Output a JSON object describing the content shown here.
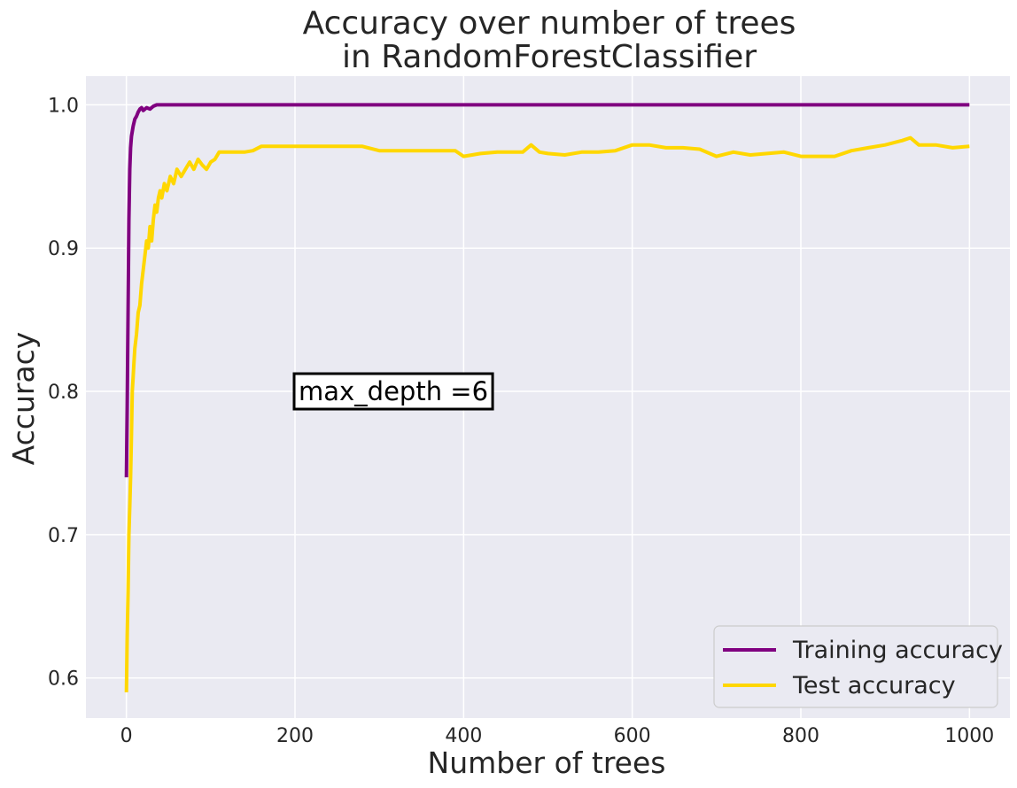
{
  "chart_data": {
    "type": "line",
    "title_lines": [
      "Accuracy over number of trees",
      "in RandomForestClassifier"
    ],
    "xlabel": "Number of trees",
    "ylabel": "Accuracy",
    "xlim": [
      -48,
      1048
    ],
    "ylim": [
      0.572,
      1.02
    ],
    "xticks": [
      0,
      200,
      400,
      600,
      800,
      1000
    ],
    "yticks": [
      0.6,
      0.7,
      0.8,
      0.9,
      1.0
    ],
    "xtick_labels": [
      "0",
      "200",
      "400",
      "600",
      "800",
      "1000"
    ],
    "ytick_labels": [
      "0.6",
      "0.7",
      "0.8",
      "0.9",
      "1.0"
    ],
    "grid": true,
    "legend_position": "bottom-right",
    "annotation": {
      "text": "max_depth =6",
      "x": 200,
      "y": 0.8
    },
    "background": "#eaeaf2",
    "series": [
      {
        "name": "Training accuracy",
        "color": "#800080",
        "points": [
          [
            0,
            0.74
          ],
          [
            1,
            0.79
          ],
          [
            2,
            0.86
          ],
          [
            3,
            0.92
          ],
          [
            4,
            0.955
          ],
          [
            5,
            0.97
          ],
          [
            6,
            0.978
          ],
          [
            8,
            0.985
          ],
          [
            10,
            0.99
          ],
          [
            12,
            0.992
          ],
          [
            14,
            0.995
          ],
          [
            16,
            0.997
          ],
          [
            18,
            0.998
          ],
          [
            20,
            0.996
          ],
          [
            24,
            0.998
          ],
          [
            28,
            0.997
          ],
          [
            32,
            0.999
          ],
          [
            36,
            1.0
          ],
          [
            1000,
            1.0
          ]
        ]
      },
      {
        "name": "Test accuracy",
        "color": "#ffd700",
        "points": [
          [
            0,
            0.59
          ],
          [
            1,
            0.63
          ],
          [
            2,
            0.66
          ],
          [
            3,
            0.7
          ],
          [
            4,
            0.72
          ],
          [
            5,
            0.74
          ],
          [
            6,
            0.77
          ],
          [
            7,
            0.8
          ],
          [
            8,
            0.81
          ],
          [
            9,
            0.82
          ],
          [
            10,
            0.83
          ],
          [
            12,
            0.84
          ],
          [
            14,
            0.855
          ],
          [
            16,
            0.86
          ],
          [
            18,
            0.875
          ],
          [
            20,
            0.885
          ],
          [
            22,
            0.895
          ],
          [
            24,
            0.905
          ],
          [
            26,
            0.9
          ],
          [
            28,
            0.915
          ],
          [
            30,
            0.905
          ],
          [
            32,
            0.92
          ],
          [
            34,
            0.93
          ],
          [
            36,
            0.925
          ],
          [
            38,
            0.935
          ],
          [
            40,
            0.94
          ],
          [
            42,
            0.935
          ],
          [
            45,
            0.945
          ],
          [
            48,
            0.94
          ],
          [
            52,
            0.95
          ],
          [
            56,
            0.945
          ],
          [
            60,
            0.955
          ],
          [
            65,
            0.95
          ],
          [
            70,
            0.955
          ],
          [
            75,
            0.96
          ],
          [
            80,
            0.955
          ],
          [
            85,
            0.962
          ],
          [
            90,
            0.958
          ],
          [
            95,
            0.955
          ],
          [
            100,
            0.96
          ],
          [
            105,
            0.962
          ],
          [
            110,
            0.967
          ],
          [
            120,
            0.967
          ],
          [
            130,
            0.967
          ],
          [
            140,
            0.967
          ],
          [
            150,
            0.968
          ],
          [
            160,
            0.971
          ],
          [
            200,
            0.971
          ],
          [
            250,
            0.971
          ],
          [
            280,
            0.971
          ],
          [
            300,
            0.968
          ],
          [
            350,
            0.968
          ],
          [
            390,
            0.968
          ],
          [
            400,
            0.964
          ],
          [
            420,
            0.966
          ],
          [
            440,
            0.967
          ],
          [
            470,
            0.967
          ],
          [
            480,
            0.972
          ],
          [
            490,
            0.967
          ],
          [
            500,
            0.966
          ],
          [
            520,
            0.965
          ],
          [
            540,
            0.967
          ],
          [
            560,
            0.967
          ],
          [
            580,
            0.968
          ],
          [
            600,
            0.972
          ],
          [
            620,
            0.972
          ],
          [
            640,
            0.97
          ],
          [
            660,
            0.97
          ],
          [
            680,
            0.969
          ],
          [
            700,
            0.964
          ],
          [
            720,
            0.967
          ],
          [
            740,
            0.965
          ],
          [
            760,
            0.966
          ],
          [
            780,
            0.967
          ],
          [
            800,
            0.964
          ],
          [
            820,
            0.964
          ],
          [
            840,
            0.964
          ],
          [
            860,
            0.968
          ],
          [
            880,
            0.97
          ],
          [
            900,
            0.972
          ],
          [
            920,
            0.975
          ],
          [
            930,
            0.977
          ],
          [
            940,
            0.972
          ],
          [
            960,
            0.972
          ],
          [
            980,
            0.97
          ],
          [
            1000,
            0.971
          ]
        ]
      }
    ]
  }
}
